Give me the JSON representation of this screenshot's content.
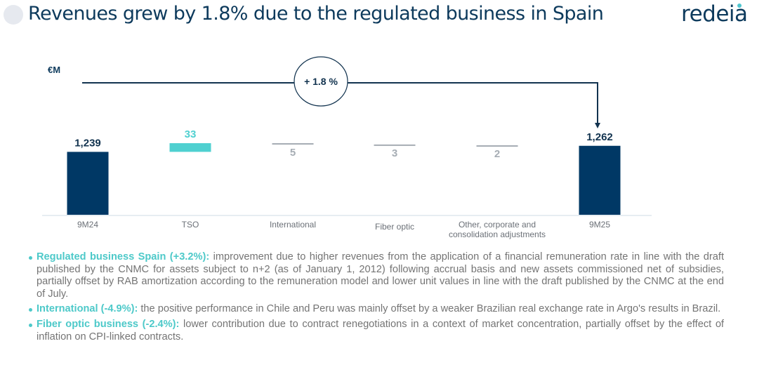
{
  "header": {
    "title": "Revenues grew by 1.8% due to the regulated business in Spain",
    "logo": "redeia"
  },
  "chart_data": {
    "type": "waterfall",
    "unit": "€M",
    "categories": [
      "9M24",
      "TSO",
      "International",
      "Fiber optic",
      "Other, corporate and consolidation adjustments",
      "9M25"
    ],
    "values": [
      1239,
      33,
      -5,
      -3,
      -2,
      1262
    ],
    "labels": [
      "1,239",
      "33",
      "5",
      "3",
      "2",
      "1,262"
    ],
    "kinds": [
      "total",
      "increase",
      "decrease",
      "decrease",
      "decrease",
      "total"
    ],
    "growth_label": "+ 1.8 %",
    "colors": {
      "total": "#003865",
      "increase": "#4fd0d0",
      "decrease": "#a6adb4"
    }
  },
  "notes": [
    {
      "label": "Regulated business Spain (+3.2%):",
      "text": " improvement due to higher revenues from the application of a financial remuneration rate in line with the draft published by the CNMC for assets subject to n+2 (as of January 1, 2012) following accrual basis and new assets commissioned net of subsidies, partially offset by RAB amortization according to the remuneration model and lower unit values in line with the draft published by the CNMC at the end of July."
    },
    {
      "label": "International (-4.9%):",
      "text": " the positive performance in Chile and Peru was mainly offset by a weaker Brazilian real exchange rate in Argo's results in Brazil."
    },
    {
      "label": "Fiber optic business (-2.4%):",
      "text": " lower contribution due to contract renegotiations in a context of market concentration, partially offset by the effect of inflation on CPI-linked contracts."
    }
  ]
}
